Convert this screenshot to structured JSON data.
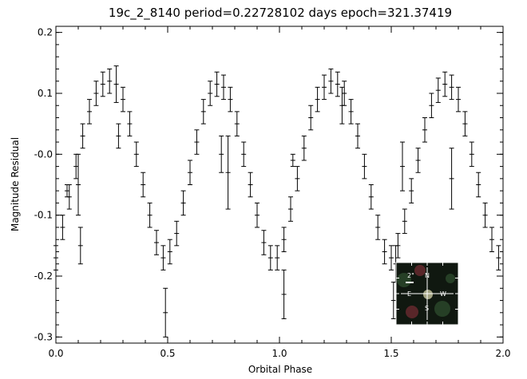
{
  "chart_data": {
    "type": "scatter",
    "title": "19c_2_8140 period=0.22728102 days epoch=321.37419",
    "xlabel": "Orbital Phase",
    "ylabel": "Magnitude Residual",
    "xlim": [
      0.0,
      2.0
    ],
    "ylim": [
      -0.31,
      0.21
    ],
    "y_inverted": false,
    "grid": false,
    "x_ticks": [
      {
        "value": 0.0,
        "label": "0.0"
      },
      {
        "value": 0.5,
        "label": "0.5"
      },
      {
        "value": 1.0,
        "label": "1.0"
      },
      {
        "value": 1.5,
        "label": "1.5"
      },
      {
        "value": 2.0,
        "label": "2.0"
      }
    ],
    "y_ticks": [
      {
        "value": 0.2,
        "label": "0.2"
      },
      {
        "value": 0.1,
        "label": "0.1"
      },
      {
        "value": 0.0,
        "label": "-0.0"
      },
      {
        "value": -0.1,
        "label": "-0.1"
      },
      {
        "value": -0.2,
        "label": "-0.2"
      },
      {
        "value": -0.3,
        "label": "-0.3"
      }
    ],
    "marker": "plus with vertical error bar",
    "colors": {
      "points": "#000000",
      "axes": "#000000",
      "background": "#ffffff"
    },
    "series": [
      {
        "x": [
          0.0,
          0.03,
          0.06,
          0.09,
          0.12,
          0.15,
          0.18,
          0.21,
          0.24,
          0.27,
          0.3,
          0.33,
          0.36,
          0.39,
          0.42,
          0.45,
          0.48,
          0.51,
          0.54,
          0.57,
          0.6,
          0.63,
          0.66,
          0.69,
          0.72,
          0.75,
          0.78,
          0.81,
          0.84,
          0.87,
          0.9,
          0.93,
          0.96,
          0.99,
          1.02,
          1.05,
          1.08,
          1.11,
          1.14,
          1.17,
          1.2,
          1.23,
          1.26,
          1.29,
          1.32,
          1.35,
          1.38,
          1.41,
          1.44,
          1.47,
          1.5,
          1.53,
          1.56,
          1.59,
          1.62,
          1.65,
          1.68,
          1.71,
          1.74,
          1.77,
          1.8,
          1.83,
          1.86,
          1.89,
          1.92,
          1.95,
          1.98,
          0.05,
          0.11,
          0.28,
          0.49,
          0.77,
          1.02,
          1.06,
          1.28,
          1.51,
          1.55,
          1.77,
          0.1,
          0.74,
          1.52
        ],
        "y": [
          -0.17,
          -0.12,
          -0.07,
          -0.02,
          0.03,
          0.07,
          0.1,
          0.115,
          0.12,
          0.115,
          0.09,
          0.05,
          0.0,
          -0.05,
          -0.1,
          -0.145,
          -0.17,
          -0.16,
          -0.13,
          -0.08,
          -0.03,
          0.02,
          0.07,
          0.1,
          0.115,
          0.11,
          0.09,
          0.05,
          0.0,
          -0.05,
          -0.1,
          -0.145,
          -0.17,
          -0.17,
          -0.14,
          -0.09,
          -0.04,
          0.01,
          0.06,
          0.09,
          0.11,
          0.12,
          0.115,
          0.1,
          0.07,
          0.03,
          -0.02,
          -0.07,
          -0.12,
          -0.16,
          -0.17,
          -0.15,
          -0.11,
          -0.06,
          -0.01,
          0.04,
          0.08,
          0.105,
          0.115,
          0.11,
          0.09,
          0.05,
          0.0,
          -0.05,
          -0.1,
          -0.14,
          -0.17,
          -0.06,
          -0.15,
          0.03,
          -0.26,
          -0.03,
          -0.23,
          -0.01,
          0.08,
          -0.24,
          -0.02,
          -0.04,
          -0.05,
          0.0,
          -0.18
        ],
        "err": [
          0.02,
          0.02,
          0.02,
          0.02,
          0.02,
          0.02,
          0.02,
          0.02,
          0.02,
          0.03,
          0.02,
          0.02,
          0.02,
          0.02,
          0.02,
          0.02,
          0.02,
          0.02,
          0.02,
          0.02,
          0.02,
          0.02,
          0.02,
          0.02,
          0.02,
          0.02,
          0.02,
          0.02,
          0.02,
          0.02,
          0.02,
          0.02,
          0.02,
          0.02,
          0.02,
          0.02,
          0.02,
          0.02,
          0.02,
          0.02,
          0.02,
          0.02,
          0.02,
          0.02,
          0.02,
          0.02,
          0.02,
          0.02,
          0.02,
          0.02,
          0.02,
          0.02,
          0.02,
          0.02,
          0.02,
          0.02,
          0.02,
          0.02,
          0.02,
          0.02,
          0.02,
          0.02,
          0.02,
          0.02,
          0.02,
          0.02,
          0.02,
          0.01,
          0.03,
          0.02,
          0.04,
          0.06,
          0.04,
          0.01,
          0.03,
          0.03,
          0.04,
          0.05,
          0.05,
          0.03,
          0.03
        ]
      }
    ],
    "inset": {
      "type": "finder image",
      "scale_label": "2\"",
      "compass": {
        "north": "N",
        "south": "S",
        "east": "E",
        "west": "W"
      },
      "colors": {
        "frame": "#ffffff",
        "dark": "#101810",
        "light": "#c8c8a0",
        "green": "#2c4a2c",
        "red": "#6a2a30"
      }
    }
  }
}
